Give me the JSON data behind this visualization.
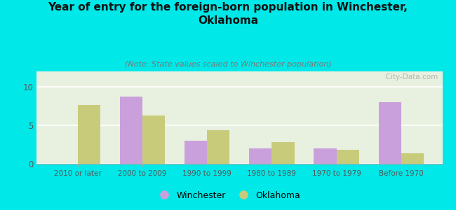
{
  "title": "Year of entry for the foreign-born population in Winchester,\nOklahoma",
  "subtitle": "(Note: State values scaled to Winchester population)",
  "categories": [
    "2010 or later",
    "2000 to 2009",
    "1990 to 1999",
    "1980 to 1989",
    "1970 to 1979",
    "Before 1970"
  ],
  "winchester_values": [
    0,
    8.7,
    3.0,
    2.0,
    2.0,
    8.0
  ],
  "oklahoma_values": [
    7.6,
    6.3,
    4.4,
    2.8,
    1.8,
    1.4
  ],
  "winchester_color": "#c9a0dc",
  "oklahoma_color": "#c8cc7a",
  "background_color": "#00e8e8",
  "plot_bg_color": "#e8f0e0",
  "ylim": [
    0,
    12
  ],
  "yticks": [
    0,
    5,
    10
  ],
  "bar_width": 0.35,
  "legend_labels": [
    "Winchester",
    "Oklahoma"
  ],
  "watermark": "  City-Data.com",
  "title_fontsize": 11,
  "subtitle_fontsize": 8,
  "grid_color": "#ffffff",
  "tick_color": "#555555",
  "spine_color": "#aaaaaa"
}
